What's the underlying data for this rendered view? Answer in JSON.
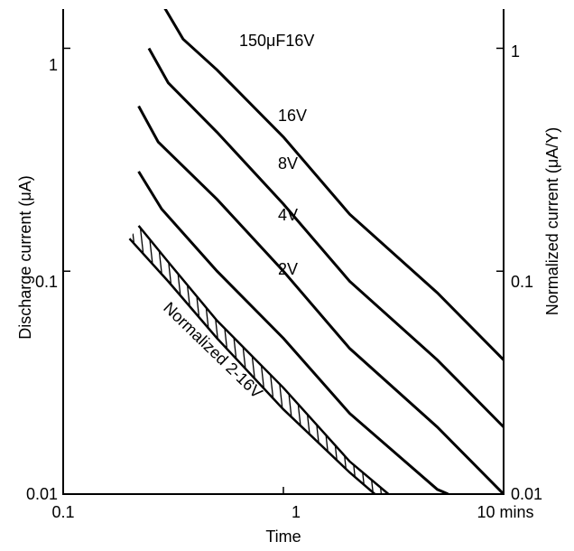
{
  "chart_data": {
    "type": "line",
    "title": "150μF16V",
    "xlabel": "Time",
    "ylabel_left": "Discharge current (μA)",
    "ylabel_right": "Normalized current (μA/Y)",
    "x_scale": "log",
    "y_scale": "log",
    "xlim": [
      0.1,
      10
    ],
    "ylim": [
      0.01,
      1.5
    ],
    "x_ticks": [
      0.1,
      1,
      10
    ],
    "x_tick_labels": [
      "0.1",
      "1",
      "10 mins"
    ],
    "y_ticks": [
      0.01,
      0.1,
      1
    ],
    "y_tick_labels_left": [
      "0.01",
      "0.1",
      "1"
    ],
    "y_tick_labels_right": [
      "0.01",
      "0.1",
      "1"
    ],
    "grid": false,
    "series": [
      {
        "name": "16V",
        "x": [
          0.28,
          0.35,
          0.5,
          1,
          2,
          5,
          10
        ],
        "y": [
          1.6,
          1.1,
          0.8,
          0.4,
          0.18,
          0.08,
          0.04
        ]
      },
      {
        "name": "8V",
        "x": [
          0.245,
          0.3,
          0.5,
          1,
          2,
          5,
          10
        ],
        "y": [
          1.0,
          0.7,
          0.42,
          0.2,
          0.09,
          0.04,
          0.02
        ]
      },
      {
        "name": "4V",
        "x": [
          0.22,
          0.27,
          0.5,
          1,
          2,
          5,
          10
        ],
        "y": [
          0.55,
          0.38,
          0.21,
          0.1,
          0.045,
          0.02,
          0.01
        ]
      },
      {
        "name": "2V",
        "x": [
          0.22,
          0.28,
          0.5,
          1,
          2,
          5,
          5.6
        ],
        "y": [
          0.28,
          0.19,
          0.1,
          0.05,
          0.023,
          0.0105,
          0.01
        ]
      }
    ],
    "band": {
      "name": "Normalized 2-16V",
      "x_upper": [
        0.22,
        0.3,
        0.5,
        1,
        2,
        3.0
      ],
      "y_upper": [
        0.16,
        0.11,
        0.06,
        0.03,
        0.014,
        0.01
      ],
      "x_lower": [
        0.2,
        0.3,
        0.5,
        1,
        2,
        2.6
      ],
      "y_lower": [
        0.14,
        0.09,
        0.05,
        0.024,
        0.0125,
        0.01
      ]
    }
  }
}
